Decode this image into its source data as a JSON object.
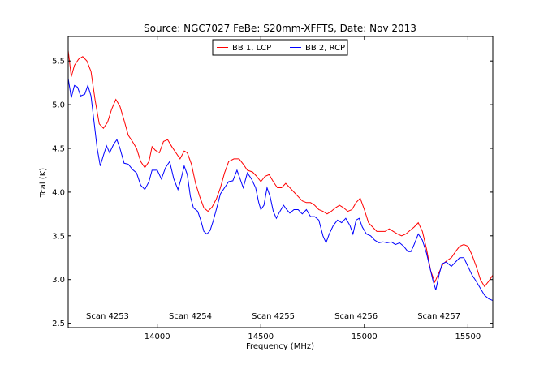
{
  "chart_data": {
    "type": "line",
    "title": "Source: NGC7027 FeBe: S20mm-XFFTS, Date: Nov 2013",
    "xlabel": "Frequency (MHz)",
    "ylabel": "Tcal (K)",
    "xlim": [
      13570,
      15620
    ],
    "ylim": [
      2.45,
      5.78
    ],
    "xticks": [
      14000,
      14500,
      15000,
      15500
    ],
    "yticks": [
      2.5,
      3.0,
      3.5,
      4.0,
      4.5,
      5.0,
      5.5
    ],
    "grid": false,
    "legend_position": "top-center",
    "series": [
      {
        "name": "BB 1, LCP",
        "color": "#ff0000",
        "points": [
          [
            13570,
            5.62
          ],
          [
            13585,
            5.32
          ],
          [
            13600,
            5.45
          ],
          [
            13620,
            5.52
          ],
          [
            13640,
            5.55
          ],
          [
            13660,
            5.5
          ],
          [
            13680,
            5.38
          ],
          [
            13700,
            5.05
          ],
          [
            13720,
            4.78
          ],
          [
            13740,
            4.73
          ],
          [
            13760,
            4.8
          ],
          [
            13780,
            4.95
          ],
          [
            13800,
            5.06
          ],
          [
            13820,
            4.98
          ],
          [
            13840,
            4.82
          ],
          [
            13860,
            4.65
          ],
          [
            13880,
            4.58
          ],
          [
            13900,
            4.5
          ],
          [
            13920,
            4.35
          ],
          [
            13940,
            4.28
          ],
          [
            13960,
            4.35
          ],
          [
            13975,
            4.52
          ],
          [
            13990,
            4.48
          ],
          [
            14010,
            4.45
          ],
          [
            14030,
            4.58
          ],
          [
            14050,
            4.6
          ],
          [
            14070,
            4.52
          ],
          [
            14090,
            4.45
          ],
          [
            14110,
            4.38
          ],
          [
            14130,
            4.47
          ],
          [
            14145,
            4.45
          ],
          [
            14165,
            4.32
          ],
          [
            14185,
            4.1
          ],
          [
            14205,
            3.95
          ],
          [
            14225,
            3.82
          ],
          [
            14245,
            3.78
          ],
          [
            14265,
            3.83
          ],
          [
            14285,
            3.92
          ],
          [
            14305,
            4.05
          ],
          [
            14325,
            4.22
          ],
          [
            14345,
            4.35
          ],
          [
            14370,
            4.38
          ],
          [
            14395,
            4.38
          ],
          [
            14415,
            4.32
          ],
          [
            14435,
            4.25
          ],
          [
            14460,
            4.23
          ],
          [
            14480,
            4.18
          ],
          [
            14500,
            4.12
          ],
          [
            14520,
            4.18
          ],
          [
            14540,
            4.2
          ],
          [
            14560,
            4.12
          ],
          [
            14580,
            4.05
          ],
          [
            14600,
            4.05
          ],
          [
            14620,
            4.1
          ],
          [
            14640,
            4.05
          ],
          [
            14660,
            4.0
          ],
          [
            14680,
            3.95
          ],
          [
            14700,
            3.9
          ],
          [
            14720,
            3.88
          ],
          [
            14740,
            3.88
          ],
          [
            14760,
            3.85
          ],
          [
            14780,
            3.8
          ],
          [
            14800,
            3.78
          ],
          [
            14820,
            3.75
          ],
          [
            14840,
            3.78
          ],
          [
            14860,
            3.82
          ],
          [
            14880,
            3.85
          ],
          [
            14900,
            3.82
          ],
          [
            14920,
            3.78
          ],
          [
            14940,
            3.8
          ],
          [
            14960,
            3.88
          ],
          [
            14980,
            3.93
          ],
          [
            15000,
            3.8
          ],
          [
            15020,
            3.65
          ],
          [
            15040,
            3.6
          ],
          [
            15060,
            3.55
          ],
          [
            15080,
            3.55
          ],
          [
            15100,
            3.55
          ],
          [
            15120,
            3.58
          ],
          [
            15140,
            3.55
          ],
          [
            15160,
            3.52
          ],
          [
            15180,
            3.5
          ],
          [
            15200,
            3.52
          ],
          [
            15220,
            3.56
          ],
          [
            15240,
            3.6
          ],
          [
            15260,
            3.65
          ],
          [
            15280,
            3.55
          ],
          [
            15300,
            3.35
          ],
          [
            15320,
            3.1
          ],
          [
            15340,
            2.97
          ],
          [
            15360,
            3.08
          ],
          [
            15380,
            3.18
          ],
          [
            15400,
            3.22
          ],
          [
            15420,
            3.25
          ],
          [
            15440,
            3.32
          ],
          [
            15460,
            3.38
          ],
          [
            15480,
            3.4
          ],
          [
            15500,
            3.38
          ],
          [
            15520,
            3.28
          ],
          [
            15540,
            3.15
          ],
          [
            15560,
            3.0
          ],
          [
            15580,
            2.92
          ],
          [
            15600,
            2.98
          ],
          [
            15620,
            3.05
          ]
        ]
      },
      {
        "name": "BB 2, RCP",
        "color": "#0000ff",
        "points": [
          [
            13570,
            5.3
          ],
          [
            13585,
            5.08
          ],
          [
            13600,
            5.22
          ],
          [
            13615,
            5.2
          ],
          [
            13630,
            5.1
          ],
          [
            13650,
            5.12
          ],
          [
            13665,
            5.22
          ],
          [
            13680,
            5.1
          ],
          [
            13695,
            4.8
          ],
          [
            13710,
            4.5
          ],
          [
            13725,
            4.3
          ],
          [
            13740,
            4.42
          ],
          [
            13755,
            4.53
          ],
          [
            13770,
            4.45
          ],
          [
            13790,
            4.55
          ],
          [
            13805,
            4.6
          ],
          [
            13820,
            4.5
          ],
          [
            13840,
            4.33
          ],
          [
            13860,
            4.32
          ],
          [
            13880,
            4.26
          ],
          [
            13900,
            4.22
          ],
          [
            13920,
            4.08
          ],
          [
            13940,
            4.03
          ],
          [
            13960,
            4.12
          ],
          [
            13975,
            4.25
          ],
          [
            14000,
            4.25
          ],
          [
            14020,
            4.15
          ],
          [
            14040,
            4.28
          ],
          [
            14060,
            4.35
          ],
          [
            14080,
            4.15
          ],
          [
            14100,
            4.03
          ],
          [
            14115,
            4.15
          ],
          [
            14130,
            4.3
          ],
          [
            14145,
            4.2
          ],
          [
            14160,
            3.95
          ],
          [
            14175,
            3.82
          ],
          [
            14195,
            3.78
          ],
          [
            14210,
            3.68
          ],
          [
            14225,
            3.55
          ],
          [
            14240,
            3.52
          ],
          [
            14255,
            3.56
          ],
          [
            14270,
            3.67
          ],
          [
            14285,
            3.8
          ],
          [
            14305,
            3.98
          ],
          [
            14325,
            4.05
          ],
          [
            14345,
            4.12
          ],
          [
            14365,
            4.13
          ],
          [
            14385,
            4.25
          ],
          [
            14400,
            4.15
          ],
          [
            14415,
            4.05
          ],
          [
            14435,
            4.22
          ],
          [
            14455,
            4.15
          ],
          [
            14475,
            4.05
          ],
          [
            14490,
            3.88
          ],
          [
            14500,
            3.8
          ],
          [
            14515,
            3.85
          ],
          [
            14530,
            4.05
          ],
          [
            14545,
            3.95
          ],
          [
            14560,
            3.78
          ],
          [
            14575,
            3.7
          ],
          [
            14590,
            3.77
          ],
          [
            14610,
            3.85
          ],
          [
            14625,
            3.8
          ],
          [
            14640,
            3.76
          ],
          [
            14660,
            3.8
          ],
          [
            14680,
            3.8
          ],
          [
            14700,
            3.75
          ],
          [
            14720,
            3.8
          ],
          [
            14740,
            3.72
          ],
          [
            14760,
            3.72
          ],
          [
            14780,
            3.68
          ],
          [
            14800,
            3.5
          ],
          [
            14815,
            3.42
          ],
          [
            14830,
            3.52
          ],
          [
            14850,
            3.62
          ],
          [
            14870,
            3.68
          ],
          [
            14890,
            3.65
          ],
          [
            14910,
            3.7
          ],
          [
            14930,
            3.62
          ],
          [
            14945,
            3.52
          ],
          [
            14960,
            3.68
          ],
          [
            14975,
            3.7
          ],
          [
            14990,
            3.6
          ],
          [
            15010,
            3.52
          ],
          [
            15030,
            3.5
          ],
          [
            15050,
            3.45
          ],
          [
            15070,
            3.42
          ],
          [
            15090,
            3.43
          ],
          [
            15110,
            3.42
          ],
          [
            15130,
            3.43
          ],
          [
            15150,
            3.4
          ],
          [
            15170,
            3.42
          ],
          [
            15190,
            3.38
          ],
          [
            15210,
            3.32
          ],
          [
            15225,
            3.32
          ],
          [
            15240,
            3.4
          ],
          [
            15260,
            3.52
          ],
          [
            15280,
            3.45
          ],
          [
            15300,
            3.3
          ],
          [
            15315,
            3.15
          ],
          [
            15330,
            3.0
          ],
          [
            15345,
            2.88
          ],
          [
            15360,
            3.05
          ],
          [
            15375,
            3.18
          ],
          [
            15395,
            3.2
          ],
          [
            15420,
            3.15
          ],
          [
            15440,
            3.2
          ],
          [
            15460,
            3.25
          ],
          [
            15480,
            3.25
          ],
          [
            15500,
            3.15
          ],
          [
            15520,
            3.05
          ],
          [
            15540,
            2.98
          ],
          [
            15560,
            2.9
          ],
          [
            15580,
            2.82
          ],
          [
            15600,
            2.78
          ],
          [
            15620,
            2.76
          ]
        ]
      }
    ],
    "annotations": [
      {
        "text": "Scan 4253",
        "x": 13760,
        "y": 2.58
      },
      {
        "text": "Scan 4254",
        "x": 14160,
        "y": 2.58
      },
      {
        "text": "Scan 4255",
        "x": 14560,
        "y": 2.58
      },
      {
        "text": "Scan 4256",
        "x": 14960,
        "y": 2.58
      },
      {
        "text": "Scan 4257",
        "x": 15360,
        "y": 2.58
      }
    ]
  }
}
